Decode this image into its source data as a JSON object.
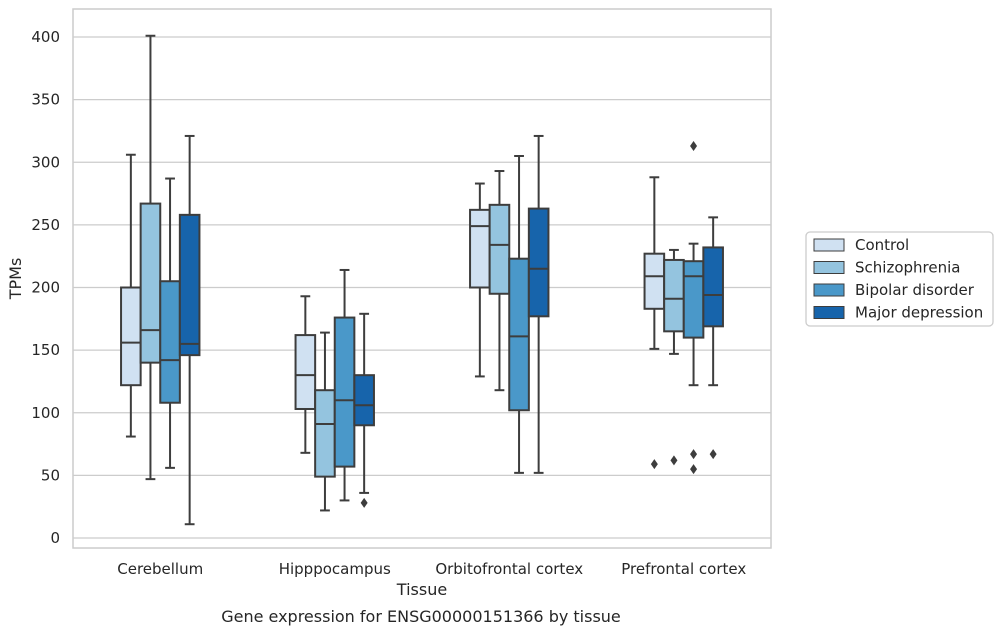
{
  "caption": "Gene expression for ENSG00000151366 by tissue",
  "chart_data": {
    "type": "boxplot",
    "xlabel": "Tissue",
    "ylabel": "TPMs",
    "ylim": [
      -8,
      422
    ],
    "yticks": [
      0,
      50,
      100,
      150,
      200,
      250,
      300,
      350,
      400
    ],
    "grid": "horizontal",
    "legend_placement": "right, outside",
    "categories": [
      "Cerebellum",
      "Hipppocampus",
      "Orbitofrontal cortex",
      "Prefrontal cortex"
    ],
    "series": [
      {
        "name": "Control",
        "color": "#d0e1f2",
        "boxes": [
          {
            "whislo": 81,
            "q1": 122,
            "med": 156,
            "q3": 200,
            "whishi": 306,
            "fliers": []
          },
          {
            "whislo": 68,
            "q1": 103,
            "med": 130,
            "q3": 162,
            "whishi": 193,
            "fliers": []
          },
          {
            "whislo": 129,
            "q1": 200,
            "med": 249,
            "q3": 262,
            "whishi": 283,
            "fliers": []
          },
          {
            "whislo": 151,
            "q1": 183,
            "med": 209,
            "q3": 227,
            "whishi": 288,
            "fliers": [
              59
            ]
          }
        ]
      },
      {
        "name": "Schizophrenia",
        "color": "#94c4df",
        "boxes": [
          {
            "whislo": 47,
            "q1": 140,
            "med": 166,
            "q3": 267,
            "whishi": 401,
            "fliers": []
          },
          {
            "whislo": 22,
            "q1": 49,
            "med": 91,
            "q3": 118,
            "whishi": 164,
            "fliers": []
          },
          {
            "whislo": 118,
            "q1": 195,
            "med": 234,
            "q3": 266,
            "whishi": 293,
            "fliers": []
          },
          {
            "whislo": 147,
            "q1": 165,
            "med": 191,
            "q3": 222,
            "whishi": 230,
            "fliers": [
              62
            ]
          }
        ]
      },
      {
        "name": "Bipolar disorder",
        "color": "#4a98c9",
        "boxes": [
          {
            "whislo": 56,
            "q1": 108,
            "med": 142,
            "q3": 205,
            "whishi": 287,
            "fliers": []
          },
          {
            "whislo": 30,
            "q1": 57,
            "med": 110,
            "q3": 176,
            "whishi": 214,
            "fliers": []
          },
          {
            "whislo": 52,
            "q1": 102,
            "med": 161,
            "q3": 223,
            "whishi": 305,
            "fliers": []
          },
          {
            "whislo": 122,
            "q1": 160,
            "med": 209,
            "q3": 221,
            "whishi": 235,
            "fliers": [
              313,
              67,
              55
            ]
          }
        ]
      },
      {
        "name": "Major depression",
        "color": "#1764ab",
        "boxes": [
          {
            "whislo": 11,
            "q1": 146,
            "med": 155,
            "q3": 258,
            "whishi": 321,
            "fliers": []
          },
          {
            "whislo": 36,
            "q1": 90,
            "med": 106,
            "q3": 130,
            "whishi": 179,
            "fliers": [
              28
            ]
          },
          {
            "whislo": 52,
            "q1": 177,
            "med": 215,
            "q3": 263,
            "whishi": 321,
            "fliers": []
          },
          {
            "whislo": 122,
            "q1": 169,
            "med": 194,
            "q3": 232,
            "whishi": 256,
            "fliers": [
              67
            ]
          }
        ]
      }
    ]
  }
}
